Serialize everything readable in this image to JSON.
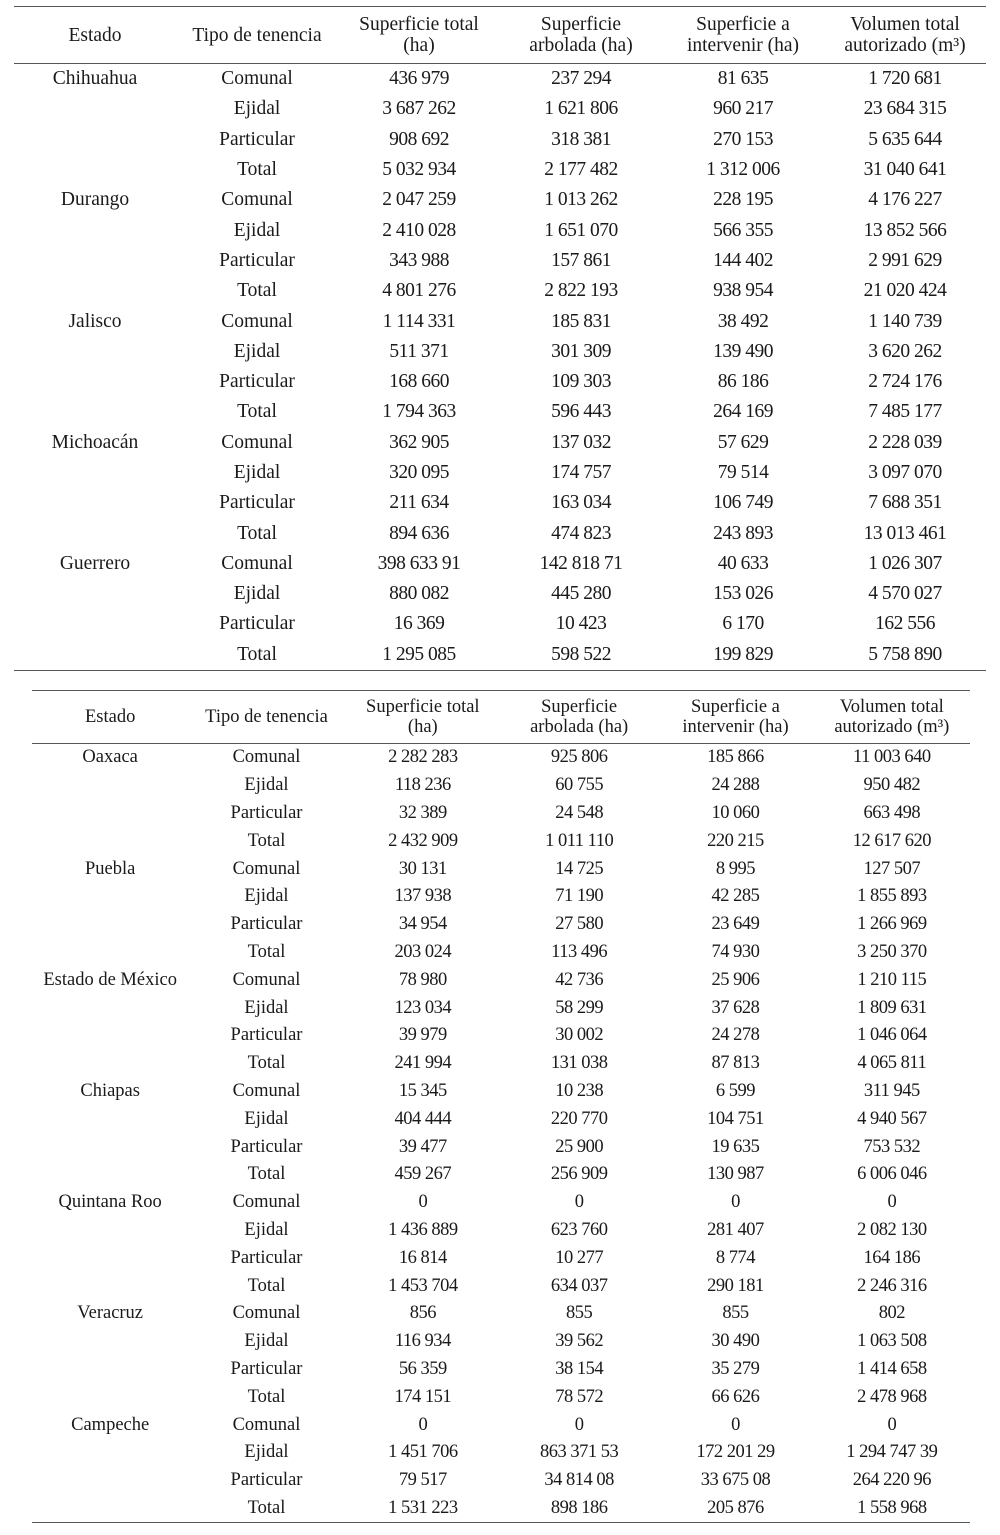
{
  "tables": [
    {
      "headers": [
        "Estado",
        "Tipo de tenencia",
        "Superficie total\n(ha)",
        "Superficie\narbolada (ha)",
        "Superficie a\nintervenir (ha)",
        "Volumen total\nautorizado (m³)"
      ],
      "rows": [
        [
          "Chihuahua",
          "Comunal",
          "436 979",
          "237 294",
          "81 635",
          "1 720 681"
        ],
        [
          "",
          "Ejidal",
          "3 687 262",
          "1 621 806",
          "960 217",
          "23 684 315"
        ],
        [
          "",
          "Particular",
          "908 692",
          "318 381",
          "270 153",
          "5 635 644"
        ],
        [
          "",
          "Total",
          "5 032 934",
          "2 177 482",
          "1 312 006",
          "31 040 641"
        ],
        [
          "Durango",
          "Comunal",
          "2 047 259",
          "1 013 262",
          "228 195",
          "4 176 227"
        ],
        [
          "",
          "Ejidal",
          "2 410 028",
          "1 651 070",
          "566 355",
          "13 852 566"
        ],
        [
          "",
          "Particular",
          "343 988",
          "157 861",
          "144 402",
          "2 991 629"
        ],
        [
          "",
          "Total",
          "4 801 276",
          "2 822 193",
          "938 954",
          "21 020 424"
        ],
        [
          "Jalisco",
          "Comunal",
          "1 114 331",
          "185 831",
          "38 492",
          "1 140 739"
        ],
        [
          "",
          "Ejidal",
          "511 371",
          "301 309",
          "139 490",
          "3 620 262"
        ],
        [
          "",
          "Particular",
          "168 660",
          "109 303",
          "86 186",
          "2 724 176"
        ],
        [
          "",
          "Total",
          "1 794 363",
          "596 443",
          "264 169",
          "7 485 177"
        ],
        [
          "Michoacán",
          "Comunal",
          "362 905",
          "137 032",
          "57 629",
          "2 228 039"
        ],
        [
          "",
          "Ejidal",
          "320 095",
          "174 757",
          "79 514",
          "3 097 070"
        ],
        [
          "",
          "Particular",
          "211 634",
          "163  034",
          "106 749",
          "7 688 351"
        ],
        [
          "",
          "Total",
          "894 636",
          "474 823",
          "243 893",
          "13 013 461"
        ],
        [
          "Guerrero",
          "Comunal",
          "398 633 91",
          "142 818 71",
          "40 633",
          "1 026 307"
        ],
        [
          "",
          "Ejidal",
          "880 082",
          "445 280",
          "153 026",
          "4 570 027"
        ],
        [
          "",
          "Particular",
          "16 369",
          "10 423",
          "6 170",
          "162 556"
        ],
        [
          "",
          "Total",
          "1 295 085",
          "598 522",
          "199 829",
          "5 758 890"
        ]
      ]
    },
    {
      "headers": [
        "Estado",
        "Tipo de tenencia",
        "Superficie total\n(ha)",
        "Superficie\narbolada (ha)",
        "Superficie a\nintervenir (ha)",
        "Volumen total\nautorizado (m³)"
      ],
      "rows": [
        [
          "Oaxaca",
          "Comunal",
          "2 282 283",
          "925 806",
          "185 866",
          "11 003 640"
        ],
        [
          "",
          "Ejidal",
          "118 236",
          "60 755",
          "24 288",
          "950 482"
        ],
        [
          "",
          "Particular",
          "32  389",
          "24 548",
          "10 060",
          "663 498"
        ],
        [
          "",
          "Total",
          "2 432 909",
          "1 011 110",
          "220 215",
          "12 617 620"
        ],
        [
          "Puebla",
          "Comunal",
          "30 131",
          "14 725",
          "8 995",
          "127 507"
        ],
        [
          "",
          "Ejidal",
          "137 938",
          "71 190",
          "42 285",
          "1 855 893"
        ],
        [
          "",
          "Particular",
          "34 954",
          "27 580",
          "23 649",
          "1 266 969"
        ],
        [
          "",
          "Total",
          "203 024",
          "113 496",
          "74 930",
          "3 250 370"
        ],
        [
          "Estado de México",
          "Comunal",
          "78 980",
          "42 736",
          "25 906",
          "1 210 115"
        ],
        [
          "",
          "Ejidal",
          "123 034",
          "58 299",
          "37 628",
          "1 809 631"
        ],
        [
          "",
          "Particular",
          "39 979",
          "30 002",
          "24 278",
          "1 046 064"
        ],
        [
          "",
          "Total",
          "241 994",
          "131 038",
          "87 813",
          "4 065 811"
        ],
        [
          "Chiapas",
          "Comunal",
          "15 345",
          "10 238",
          "6 599",
          "311 945"
        ],
        [
          "",
          "Ejidal",
          "404 444",
          "220 770",
          "104 751",
          "4 940 567"
        ],
        [
          "",
          "Particular",
          "39 477",
          "25 900",
          "19 635",
          "753 532"
        ],
        [
          "",
          "Total",
          "459  267",
          "256 909",
          "130 987",
          "6 006 046"
        ],
        [
          "Quintana Roo",
          "Comunal",
          "0",
          "0",
          "0",
          "0"
        ],
        [
          "",
          "Ejidal",
          "1 436 889",
          "623 760",
          "281 407",
          "2 082 130"
        ],
        [
          "",
          "Particular",
          "16 814",
          "10 277",
          "8 774",
          "164 186"
        ],
        [
          "",
          "Total",
          "1 453 704",
          "634 037",
          "290 181",
          "2 246 316"
        ],
        [
          "Veracruz",
          "Comunal",
          "856",
          "855",
          "855",
          "802"
        ],
        [
          "",
          "Ejidal",
          "116 934",
          "39 562",
          "30 490",
          "1 063 508"
        ],
        [
          "",
          "Particular",
          "56 359",
          "38 154",
          "35 279",
          "1 414 658"
        ],
        [
          "",
          "Total",
          "174 151",
          "78 572",
          "66 626",
          "2 478 968"
        ],
        [
          "Campeche",
          "Comunal",
          "0",
          "0",
          "0",
          "0"
        ],
        [
          "",
          "Ejidal",
          "1 451 706",
          "863 371 53",
          "172 201 29",
          "1 294 747 39"
        ],
        [
          "",
          "Particular",
          "79 517",
          "34 814 08",
          "33 675 08",
          "264 220 96"
        ],
        [
          "",
          "Total",
          "1 531 223",
          "898 186",
          "205 876",
          "1 558 968"
        ]
      ]
    }
  ]
}
